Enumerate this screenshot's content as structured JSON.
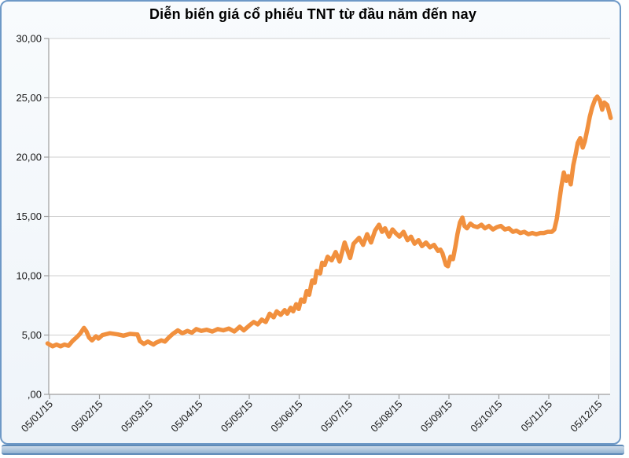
{
  "chart_data": {
    "type": "line",
    "title": "Diễn biến giá cổ phiếu TNT từ đầu năm đến nay",
    "xlabel": "",
    "ylabel": "",
    "x_tick_labels": [
      "05/01/15",
      "05/02/15",
      "05/03/15",
      "05/04/15",
      "05/05/15",
      "05/06/15",
      "05/07/15",
      "05/08/15",
      "05/09/15",
      "05/10/15",
      "05/11/15",
      "05/12/15"
    ],
    "y_tick_labels": [
      ",00",
      "5,00",
      "10,00",
      "15,00",
      "20,00",
      "25,00",
      "30,00"
    ],
    "ylim": [
      0,
      30
    ],
    "y_step": 5,
    "xlim": [
      -0.05,
      11.25
    ],
    "x_unit": "months after 05/01/15 tick",
    "grid": "horizontal",
    "legend_position": "none",
    "series": [
      {
        "name": "TNT",
        "color": "#F1903E",
        "points": [
          [
            -0.04,
            4.3
          ],
          [
            0.06,
            4.05
          ],
          [
            0.14,
            4.2
          ],
          [
            0.22,
            4.05
          ],
          [
            0.3,
            4.2
          ],
          [
            0.38,
            4.1
          ],
          [
            0.46,
            4.5
          ],
          [
            0.54,
            4.8
          ],
          [
            0.61,
            5.1
          ],
          [
            0.69,
            5.6
          ],
          [
            0.74,
            5.3
          ],
          [
            0.79,
            4.8
          ],
          [
            0.85,
            4.55
          ],
          [
            0.93,
            4.9
          ],
          [
            0.98,
            4.7
          ],
          [
            1.06,
            5.0
          ],
          [
            1.21,
            5.15
          ],
          [
            1.37,
            5.05
          ],
          [
            1.48,
            4.95
          ],
          [
            1.61,
            5.1
          ],
          [
            1.76,
            5.05
          ],
          [
            1.81,
            4.5
          ],
          [
            1.89,
            4.25
          ],
          [
            1.97,
            4.45
          ],
          [
            2.08,
            4.2
          ],
          [
            2.13,
            4.35
          ],
          [
            2.24,
            4.55
          ],
          [
            2.31,
            4.45
          ],
          [
            2.39,
            4.8
          ],
          [
            2.47,
            5.1
          ],
          [
            2.57,
            5.4
          ],
          [
            2.66,
            5.15
          ],
          [
            2.76,
            5.35
          ],
          [
            2.85,
            5.2
          ],
          [
            2.94,
            5.5
          ],
          [
            3.04,
            5.35
          ],
          [
            3.15,
            5.45
          ],
          [
            3.26,
            5.3
          ],
          [
            3.37,
            5.5
          ],
          [
            3.48,
            5.4
          ],
          [
            3.59,
            5.55
          ],
          [
            3.7,
            5.3
          ],
          [
            3.81,
            5.7
          ],
          [
            3.89,
            5.4
          ],
          [
            4.0,
            5.8
          ],
          [
            4.09,
            6.1
          ],
          [
            4.17,
            5.9
          ],
          [
            4.25,
            6.3
          ],
          [
            4.33,
            6.1
          ],
          [
            4.41,
            6.8
          ],
          [
            4.49,
            6.5
          ],
          [
            4.55,
            7.0
          ],
          [
            4.63,
            6.7
          ],
          [
            4.71,
            7.1
          ],
          [
            4.76,
            6.8
          ],
          [
            4.83,
            7.3
          ],
          [
            4.88,
            7.0
          ],
          [
            4.94,
            7.6
          ],
          [
            4.99,
            7.2
          ],
          [
            5.04,
            8.0
          ],
          [
            5.1,
            7.8
          ],
          [
            5.15,
            8.7
          ],
          [
            5.2,
            8.4
          ],
          [
            5.26,
            9.6
          ],
          [
            5.31,
            9.4
          ],
          [
            5.35,
            10.4
          ],
          [
            5.42,
            10.2
          ],
          [
            5.46,
            11.1
          ],
          [
            5.51,
            10.9
          ],
          [
            5.57,
            11.6
          ],
          [
            5.65,
            11.3
          ],
          [
            5.73,
            12.0
          ],
          [
            5.81,
            11.2
          ],
          [
            5.91,
            12.8
          ],
          [
            6.02,
            11.5
          ],
          [
            6.09,
            12.7
          ],
          [
            6.2,
            13.2
          ],
          [
            6.28,
            12.6
          ],
          [
            6.36,
            13.5
          ],
          [
            6.44,
            12.8
          ],
          [
            6.52,
            13.8
          ],
          [
            6.6,
            14.3
          ],
          [
            6.66,
            13.7
          ],
          [
            6.72,
            14.0
          ],
          [
            6.8,
            13.3
          ],
          [
            6.87,
            13.9
          ],
          [
            6.93,
            13.6
          ],
          [
            7.01,
            13.3
          ],
          [
            7.09,
            13.7
          ],
          [
            7.17,
            13.0
          ],
          [
            7.24,
            13.3
          ],
          [
            7.31,
            12.7
          ],
          [
            7.39,
            13.0
          ],
          [
            7.46,
            12.5
          ],
          [
            7.54,
            12.8
          ],
          [
            7.62,
            12.4
          ],
          [
            7.7,
            12.6
          ],
          [
            7.78,
            12.1
          ],
          [
            7.83,
            12.2
          ],
          [
            7.87,
            11.9
          ],
          [
            7.94,
            10.9
          ],
          [
            7.98,
            10.8
          ],
          [
            8.03,
            11.6
          ],
          [
            8.08,
            11.4
          ],
          [
            8.13,
            12.5
          ],
          [
            8.17,
            13.5
          ],
          [
            8.22,
            14.5
          ],
          [
            8.27,
            14.9
          ],
          [
            8.31,
            14.2
          ],
          [
            8.36,
            14.0
          ],
          [
            8.43,
            14.4
          ],
          [
            8.49,
            14.2
          ],
          [
            8.57,
            14.1
          ],
          [
            8.65,
            14.3
          ],
          [
            8.72,
            14.0
          ],
          [
            8.8,
            14.2
          ],
          [
            8.88,
            13.9
          ],
          [
            8.96,
            14.1
          ],
          [
            9.04,
            14.2
          ],
          [
            9.12,
            13.9
          ],
          [
            9.2,
            14.0
          ],
          [
            9.28,
            13.7
          ],
          [
            9.35,
            13.8
          ],
          [
            9.43,
            13.6
          ],
          [
            9.51,
            13.7
          ],
          [
            9.59,
            13.5
          ],
          [
            9.67,
            13.6
          ],
          [
            9.75,
            13.5
          ],
          [
            9.83,
            13.6
          ],
          [
            9.9,
            13.6
          ],
          [
            9.98,
            13.7
          ],
          [
            10.06,
            13.7
          ],
          [
            10.11,
            13.9
          ],
          [
            10.16,
            14.8
          ],
          [
            10.2,
            16.0
          ],
          [
            10.25,
            17.5
          ],
          [
            10.3,
            18.7
          ],
          [
            10.35,
            18.0
          ],
          [
            10.39,
            18.4
          ],
          [
            10.44,
            17.7
          ],
          [
            10.49,
            19.3
          ],
          [
            10.54,
            20.3
          ],
          [
            10.58,
            21.2
          ],
          [
            10.63,
            21.6
          ],
          [
            10.68,
            20.8
          ],
          [
            10.72,
            21.3
          ],
          [
            10.77,
            22.3
          ],
          [
            10.82,
            23.4
          ],
          [
            10.87,
            24.2
          ],
          [
            10.93,
            24.9
          ],
          [
            10.97,
            25.1
          ],
          [
            11.02,
            24.8
          ],
          [
            11.07,
            24.0
          ],
          [
            11.11,
            24.6
          ],
          [
            11.17,
            24.4
          ],
          [
            11.21,
            23.8
          ],
          [
            11.24,
            23.3
          ]
        ]
      }
    ]
  },
  "colors": {
    "line": "#F1903E",
    "grid": "#CFCFCF",
    "axis": "#9E9E9E",
    "tick_text": "#1A1A1A",
    "frame_border": "#6E99C7",
    "plot_bg": "#FFFFFF",
    "bar_border": "#5E8AB8",
    "bar_fill": "#AEC6DC"
  }
}
